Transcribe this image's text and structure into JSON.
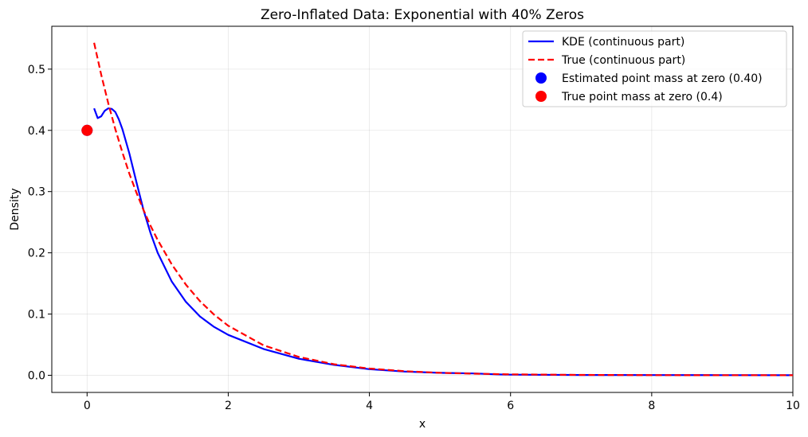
{
  "chart_data": {
    "type": "line",
    "title": "Zero-Inflated Data: Exponential with 40% Zeros",
    "xlabel": "x",
    "ylabel": "Density",
    "xlim": [
      -0.5,
      10
    ],
    "ylim": [
      -0.028,
      0.57
    ],
    "xticks": [
      0,
      2,
      4,
      6,
      8,
      10
    ],
    "yticks": [
      0.0,
      0.1,
      0.2,
      0.3,
      0.4,
      0.5
    ],
    "xtick_labels": [
      "0",
      "2",
      "4",
      "6",
      "8",
      "10"
    ],
    "ytick_labels": [
      "0.0",
      "0.1",
      "0.2",
      "0.3",
      "0.4",
      "0.5"
    ],
    "grid": true,
    "legend_position": "top-right",
    "series": [
      {
        "name": "KDE (continuous part)",
        "style": "solid",
        "color": "#0000ff",
        "x": [
          0.1,
          0.15,
          0.2,
          0.25,
          0.3,
          0.35,
          0.4,
          0.45,
          0.5,
          0.6,
          0.7,
          0.8,
          0.9,
          1.0,
          1.2,
          1.4,
          1.6,
          1.8,
          2.0,
          2.5,
          3.0,
          3.5,
          4.0,
          4.5,
          5.0,
          5.5,
          5.8,
          6.0,
          7.0,
          8.0,
          9.0,
          10.0
        ],
        "y": [
          0.436,
          0.42,
          0.423,
          0.432,
          0.436,
          0.435,
          0.43,
          0.418,
          0.402,
          0.362,
          0.315,
          0.27,
          0.232,
          0.2,
          0.153,
          0.12,
          0.096,
          0.079,
          0.066,
          0.043,
          0.027,
          0.017,
          0.01,
          0.006,
          0.004,
          0.003,
          0.0015,
          0.001,
          0.0005,
          0.0003,
          0.0002,
          0.0001
        ]
      },
      {
        "name": "True (continuous part)",
        "style": "dashed",
        "color": "#ff0000",
        "x": [
          0.1,
          0.2,
          0.3,
          0.4,
          0.5,
          0.6,
          0.7,
          0.8,
          0.9,
          1.0,
          1.2,
          1.4,
          1.6,
          1.8,
          2.0,
          2.5,
          3.0,
          3.5,
          4.0,
          4.5,
          5.0,
          5.5,
          6.0,
          7.0,
          8.0,
          9.0,
          10.0
        ],
        "y": [
          0.543,
          0.491,
          0.444,
          0.402,
          0.364,
          0.329,
          0.298,
          0.27,
          0.244,
          0.221,
          0.181,
          0.148,
          0.121,
          0.099,
          0.081,
          0.049,
          0.03,
          0.018,
          0.011,
          0.0067,
          0.004,
          0.0025,
          0.0015,
          0.0006,
          0.0002,
          0.0001,
          5e-05
        ]
      },
      {
        "name": "Estimated point mass at zero (0.40)",
        "style": "marker",
        "color": "#0000ff",
        "x": [
          0
        ],
        "y": [
          0.4
        ]
      },
      {
        "name": "True point mass at zero (0.4)",
        "style": "marker",
        "color": "#ff0000",
        "x": [
          0
        ],
        "y": [
          0.4
        ]
      }
    ]
  }
}
